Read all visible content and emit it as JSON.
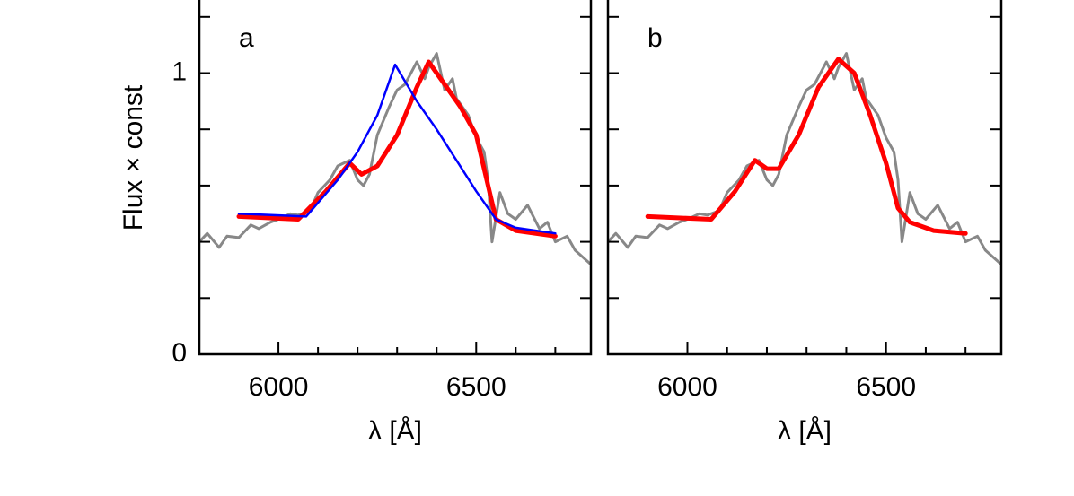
{
  "chart_data": [
    {
      "type": "line",
      "panel_label": "a",
      "xlabel": "λ [Å]",
      "ylabel": "Flux × const",
      "xlim": [
        5800,
        6790
      ],
      "ylim": [
        0,
        1.26
      ],
      "xticks": [
        6000,
        6500
      ],
      "minor_xticks": [
        6100,
        6200,
        6300,
        6400,
        6600,
        6700
      ],
      "yticks": [
        0,
        1
      ],
      "minor_yticks": [
        0.2,
        0.4,
        0.6,
        0.8,
        1.2
      ],
      "series": [
        {
          "color": "#888888",
          "width": 3,
          "x": [
            5800,
            5820,
            5850,
            5870,
            5900,
            5930,
            5950,
            5980,
            6000,
            6030,
            6050,
            6080,
            6100,
            6130,
            6150,
            6180,
            6200,
            6215,
            6230,
            6250,
            6280,
            6300,
            6320,
            6350,
            6370,
            6380,
            6400,
            6420,
            6440,
            6450,
            6480,
            6500,
            6520,
            6530,
            6540,
            6560,
            6580,
            6600,
            6630,
            6660,
            6680,
            6700,
            6730,
            6750,
            6790
          ],
          "values": [
            0.4,
            0.43,
            0.38,
            0.42,
            0.415,
            0.46,
            0.447,
            0.47,
            0.48,
            0.5,
            0.495,
            0.51,
            0.575,
            0.62,
            0.67,
            0.69,
            0.62,
            0.6,
            0.64,
            0.78,
            0.88,
            0.94,
            0.96,
            1.04,
            0.98,
            1.02,
            1.07,
            0.94,
            0.98,
            0.91,
            0.85,
            0.77,
            0.72,
            0.62,
            0.4,
            0.575,
            0.5,
            0.48,
            0.53,
            0.447,
            0.47,
            0.4,
            0.42,
            0.37,
            0.32
          ]
        },
        {
          "color": "#ff0000",
          "width": 5,
          "x": [
            5900,
            6050,
            6120,
            6180,
            6210,
            6250,
            6300,
            6350,
            6380,
            6420,
            6460,
            6500,
            6550,
            6600,
            6700
          ],
          "values": [
            0.49,
            0.48,
            0.58,
            0.68,
            0.64,
            0.67,
            0.78,
            0.95,
            1.04,
            0.96,
            0.88,
            0.78,
            0.48,
            0.44,
            0.42
          ]
        },
        {
          "color": "#0000ff",
          "width": 2.5,
          "x": [
            5900,
            6070,
            6150,
            6200,
            6250,
            6295,
            6350,
            6400,
            6450,
            6500,
            6550,
            6600,
            6700
          ],
          "values": [
            0.5,
            0.49,
            0.62,
            0.72,
            0.85,
            1.03,
            0.9,
            0.8,
            0.69,
            0.58,
            0.48,
            0.45,
            0.43
          ]
        }
      ]
    },
    {
      "type": "line",
      "panel_label": "b",
      "xlabel": "λ [Å]",
      "xlim": [
        5800,
        6790
      ],
      "ylim": [
        0,
        1.26
      ],
      "xticks": [
        6000,
        6500
      ],
      "minor_xticks": [
        6100,
        6200,
        6300,
        6400,
        6600,
        6700
      ],
      "minor_yticks": [
        0.2,
        0.4,
        0.6,
        0.8,
        1,
        1.2
      ],
      "series": [
        {
          "color": "#888888",
          "width": 3,
          "x": [
            5800,
            5820,
            5850,
            5870,
            5900,
            5930,
            5950,
            5980,
            6000,
            6030,
            6050,
            6080,
            6100,
            6130,
            6150,
            6180,
            6200,
            6215,
            6230,
            6250,
            6280,
            6300,
            6320,
            6350,
            6370,
            6380,
            6400,
            6420,
            6440,
            6450,
            6480,
            6500,
            6520,
            6530,
            6540,
            6560,
            6580,
            6600,
            6630,
            6660,
            6680,
            6700,
            6730,
            6750,
            6790
          ],
          "values": [
            0.4,
            0.43,
            0.38,
            0.42,
            0.415,
            0.46,
            0.447,
            0.47,
            0.48,
            0.5,
            0.495,
            0.51,
            0.575,
            0.62,
            0.67,
            0.69,
            0.62,
            0.6,
            0.64,
            0.78,
            0.88,
            0.94,
            0.96,
            1.04,
            0.98,
            1.02,
            1.07,
            0.94,
            0.98,
            0.91,
            0.85,
            0.77,
            0.72,
            0.62,
            0.4,
            0.575,
            0.5,
            0.48,
            0.53,
            0.447,
            0.47,
            0.4,
            0.42,
            0.37,
            0.32
          ]
        },
        {
          "color": "#ff0000",
          "width": 5,
          "x": [
            5900,
            6060,
            6120,
            6170,
            6200,
            6230,
            6280,
            6330,
            6380,
            6420,
            6460,
            6500,
            6530,
            6560,
            6620,
            6700
          ],
          "values": [
            0.49,
            0.48,
            0.58,
            0.69,
            0.66,
            0.66,
            0.78,
            0.95,
            1.05,
            1.0,
            0.85,
            0.68,
            0.52,
            0.47,
            0.44,
            0.43
          ]
        }
      ]
    }
  ]
}
